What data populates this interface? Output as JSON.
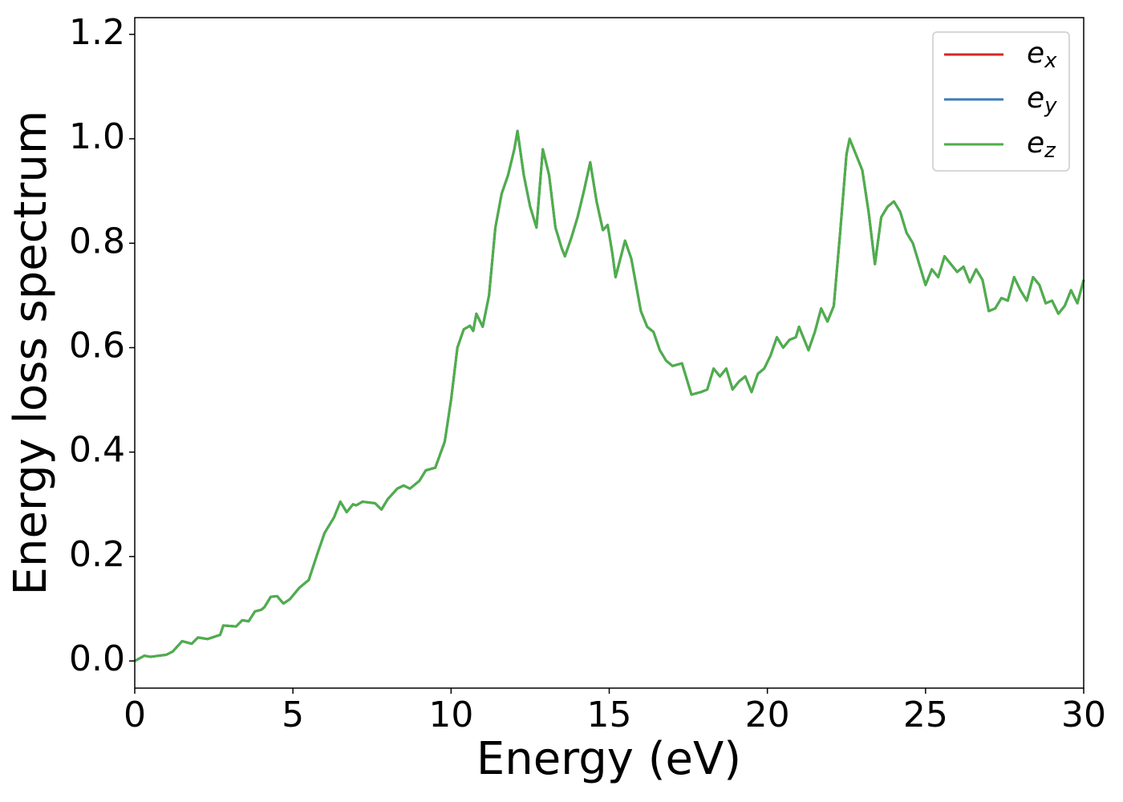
{
  "chart_data": {
    "type": "line",
    "xlabel": "Energy (eV)",
    "ylabel": "Energy loss spectrum",
    "x": [
      0,
      0.3,
      0.5,
      1.0,
      1.2,
      1.5,
      1.8,
      2.0,
      2.3,
      2.5,
      2.7,
      2.8,
      3.2,
      3.4,
      3.6,
      3.8,
      4.0,
      4.1,
      4.3,
      4.5,
      4.7,
      4.9,
      5.2,
      5.5,
      5.8,
      6.0,
      6.3,
      6.5,
      6.7,
      6.9,
      7.0,
      7.2,
      7.6,
      7.8,
      8.0,
      8.3,
      8.5,
      8.7,
      9.0,
      9.2,
      9.5,
      9.8,
      10.0,
      10.2,
      10.4,
      10.6,
      10.7,
      10.8,
      11.0,
      11.2,
      11.4,
      11.6,
      11.8,
      12.0,
      12.1,
      12.3,
      12.5,
      12.7,
      12.9,
      13.1,
      13.3,
      13.5,
      13.6,
      13.8,
      14.0,
      14.2,
      14.4,
      14.6,
      14.8,
      14.95,
      15.1,
      15.2,
      15.5,
      15.7,
      16.0,
      16.2,
      16.4,
      16.6,
      16.8,
      17.0,
      17.3,
      17.5,
      17.6,
      17.9,
      18.1,
      18.3,
      18.5,
      18.7,
      18.9,
      19.1,
      19.3,
      19.5,
      19.7,
      19.9,
      20.1,
      20.3,
      20.5,
      20.7,
      20.9,
      21.0,
      21.3,
      21.5,
      21.7,
      21.9,
      22.1,
      22.3,
      22.5,
      22.6,
      22.8,
      23.0,
      23.2,
      23.4,
      23.6,
      23.8,
      24.0,
      24.2,
      24.4,
      24.6,
      24.8,
      25.0,
      25.2,
      25.4,
      25.6,
      25.8,
      26.0,
      26.2,
      26.4,
      26.6,
      26.8,
      27.0,
      27.2,
      27.4,
      27.6,
      27.8,
      28.0,
      28.2,
      28.4,
      28.6,
      28.8,
      29.0,
      29.2,
      29.4,
      29.6,
      29.8,
      30.0
    ],
    "series": [
      {
        "name": "ex",
        "color": "#d62728",
        "values": [
          0,
          0.01,
          0.008,
          0.012,
          0.018,
          0.038,
          0.033,
          0.045,
          0.042,
          0.046,
          0.05,
          0.068,
          0.066,
          0.078,
          0.076,
          0.095,
          0.098,
          0.103,
          0.123,
          0.124,
          0.11,
          0.118,
          0.14,
          0.155,
          0.21,
          0.245,
          0.275,
          0.305,
          0.285,
          0.3,
          0.298,
          0.305,
          0.302,
          0.29,
          0.31,
          0.33,
          0.336,
          0.33,
          0.345,
          0.365,
          0.37,
          0.42,
          0.5,
          0.6,
          0.635,
          0.642,
          0.632,
          0.665,
          0.64,
          0.7,
          0.83,
          0.895,
          0.93,
          0.98,
          1.015,
          0.93,
          0.87,
          0.83,
          0.98,
          0.93,
          0.83,
          0.79,
          0.775,
          0.81,
          0.85,
          0.9,
          0.955,
          0.88,
          0.825,
          0.835,
          0.78,
          0.735,
          0.805,
          0.77,
          0.67,
          0.64,
          0.63,
          0.595,
          0.575,
          0.565,
          0.57,
          0.53,
          0.51,
          0.515,
          0.52,
          0.56,
          0.545,
          0.56,
          0.52,
          0.535,
          0.545,
          0.515,
          0.55,
          0.56,
          0.585,
          0.62,
          0.6,
          0.615,
          0.62,
          0.64,
          0.595,
          0.63,
          0.675,
          0.65,
          0.68,
          0.82,
          0.97,
          1.0,
          0.97,
          0.94,
          0.86,
          0.76,
          0.85,
          0.87,
          0.88,
          0.86,
          0.82,
          0.8,
          0.76,
          0.72,
          0.75,
          0.735,
          0.775,
          0.76,
          0.745,
          0.755,
          0.725,
          0.75,
          0.73,
          0.67,
          0.675,
          0.695,
          0.69,
          0.735,
          0.71,
          0.69,
          0.735,
          0.72,
          0.685,
          0.69,
          0.665,
          0.68,
          0.71,
          0.685,
          0.73
        ]
      },
      {
        "name": "ey",
        "color": "#377eb8",
        "values": [
          0,
          0.01,
          0.008,
          0.012,
          0.018,
          0.038,
          0.033,
          0.045,
          0.042,
          0.046,
          0.05,
          0.068,
          0.066,
          0.078,
          0.076,
          0.095,
          0.098,
          0.103,
          0.123,
          0.124,
          0.11,
          0.118,
          0.14,
          0.155,
          0.21,
          0.245,
          0.275,
          0.305,
          0.285,
          0.3,
          0.298,
          0.305,
          0.302,
          0.29,
          0.31,
          0.33,
          0.336,
          0.33,
          0.345,
          0.365,
          0.37,
          0.42,
          0.5,
          0.6,
          0.635,
          0.642,
          0.632,
          0.665,
          0.64,
          0.7,
          0.83,
          0.895,
          0.93,
          0.98,
          1.015,
          0.93,
          0.87,
          0.83,
          0.98,
          0.93,
          0.83,
          0.79,
          0.775,
          0.81,
          0.85,
          0.9,
          0.955,
          0.88,
          0.825,
          0.835,
          0.78,
          0.735,
          0.805,
          0.77,
          0.67,
          0.64,
          0.63,
          0.595,
          0.575,
          0.565,
          0.57,
          0.53,
          0.51,
          0.515,
          0.52,
          0.56,
          0.545,
          0.56,
          0.52,
          0.535,
          0.545,
          0.515,
          0.55,
          0.56,
          0.585,
          0.62,
          0.6,
          0.615,
          0.62,
          0.64,
          0.595,
          0.63,
          0.675,
          0.65,
          0.68,
          0.82,
          0.97,
          1.0,
          0.97,
          0.94,
          0.86,
          0.76,
          0.85,
          0.87,
          0.88,
          0.86,
          0.82,
          0.8,
          0.76,
          0.72,
          0.75,
          0.735,
          0.775,
          0.76,
          0.745,
          0.755,
          0.725,
          0.75,
          0.73,
          0.67,
          0.675,
          0.695,
          0.69,
          0.735,
          0.71,
          0.69,
          0.735,
          0.72,
          0.685,
          0.69,
          0.665,
          0.68,
          0.71,
          0.685,
          0.73
        ]
      },
      {
        "name": "ez",
        "color": "#4daf4a",
        "values": [
          0,
          0.01,
          0.008,
          0.012,
          0.018,
          0.038,
          0.033,
          0.045,
          0.042,
          0.046,
          0.05,
          0.068,
          0.066,
          0.078,
          0.076,
          0.095,
          0.098,
          0.103,
          0.123,
          0.124,
          0.11,
          0.118,
          0.14,
          0.155,
          0.21,
          0.245,
          0.275,
          0.305,
          0.285,
          0.3,
          0.298,
          0.305,
          0.302,
          0.29,
          0.31,
          0.33,
          0.336,
          0.33,
          0.345,
          0.365,
          0.37,
          0.42,
          0.5,
          0.6,
          0.635,
          0.642,
          0.632,
          0.665,
          0.64,
          0.7,
          0.83,
          0.895,
          0.93,
          0.98,
          1.015,
          0.93,
          0.87,
          0.83,
          0.98,
          0.93,
          0.83,
          0.79,
          0.775,
          0.81,
          0.85,
          0.9,
          0.955,
          0.88,
          0.825,
          0.835,
          0.78,
          0.735,
          0.805,
          0.77,
          0.67,
          0.64,
          0.63,
          0.595,
          0.575,
          0.565,
          0.57,
          0.53,
          0.51,
          0.515,
          0.52,
          0.56,
          0.545,
          0.56,
          0.52,
          0.535,
          0.545,
          0.515,
          0.55,
          0.56,
          0.585,
          0.62,
          0.6,
          0.615,
          0.62,
          0.64,
          0.595,
          0.63,
          0.675,
          0.65,
          0.68,
          0.82,
          0.97,
          1.0,
          0.97,
          0.94,
          0.86,
          0.76,
          0.85,
          0.87,
          0.88,
          0.86,
          0.82,
          0.8,
          0.76,
          0.72,
          0.75,
          0.735,
          0.775,
          0.76,
          0.745,
          0.755,
          0.725,
          0.75,
          0.73,
          0.67,
          0.675,
          0.695,
          0.69,
          0.735,
          0.71,
          0.69,
          0.735,
          0.72,
          0.685,
          0.69,
          0.665,
          0.68,
          0.71,
          0.685,
          0.73
        ]
      }
    ],
    "xlim": [
      0,
      30
    ],
    "xticks": [
      0,
      5,
      10,
      15,
      20,
      25,
      30
    ],
    "ylim": [
      -0.052,
      1.232
    ],
    "yticks": [
      {
        "value": 0,
        "label": "0.0"
      },
      {
        "value": 0.2,
        "label": "0.2"
      },
      {
        "value": 0.4,
        "label": "0.4"
      },
      {
        "value": 0.6,
        "label": "0.6"
      },
      {
        "value": 0.8,
        "label": "0.8"
      },
      {
        "value": 1.0,
        "label": "1.0"
      },
      {
        "value": 1.2,
        "label": "1.2"
      }
    ],
    "legend": "upper right",
    "grid": false
  }
}
